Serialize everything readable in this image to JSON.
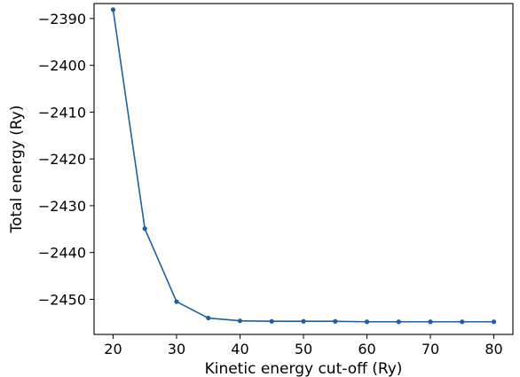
{
  "chart_data": {
    "type": "line",
    "xlabel": "Kinetic energy cut-off (Ry)",
    "ylabel": "Total energy (Ry)",
    "xlim": [
      17,
      83
    ],
    "ylim": [
      -2457.5,
      -2386.8
    ],
    "xticks": [
      20,
      30,
      40,
      50,
      60,
      70,
      80
    ],
    "xtick_labels": [
      "20",
      "30",
      "40",
      "50",
      "60",
      "70",
      "80"
    ],
    "yticks": [
      -2390,
      -2400,
      -2410,
      -2420,
      -2430,
      -2440,
      -2450
    ],
    "ytick_labels": [
      "−2390",
      "−2400",
      "−2410",
      "−2420",
      "−2430",
      "−2440",
      "−2450"
    ],
    "grid": false,
    "series": [
      {
        "color": "#1f5f9e",
        "marker": "circle",
        "x": [
          20,
          25,
          30,
          35,
          40,
          45,
          50,
          55,
          60,
          65,
          70,
          75,
          80
        ],
        "y": [
          -2388.1,
          -2434.9,
          -2450.5,
          -2454.0,
          -2454.6,
          -2454.7,
          -2454.7,
          -2454.7,
          -2454.8,
          -2454.8,
          -2454.8,
          -2454.8,
          -2454.8
        ]
      }
    ]
  }
}
